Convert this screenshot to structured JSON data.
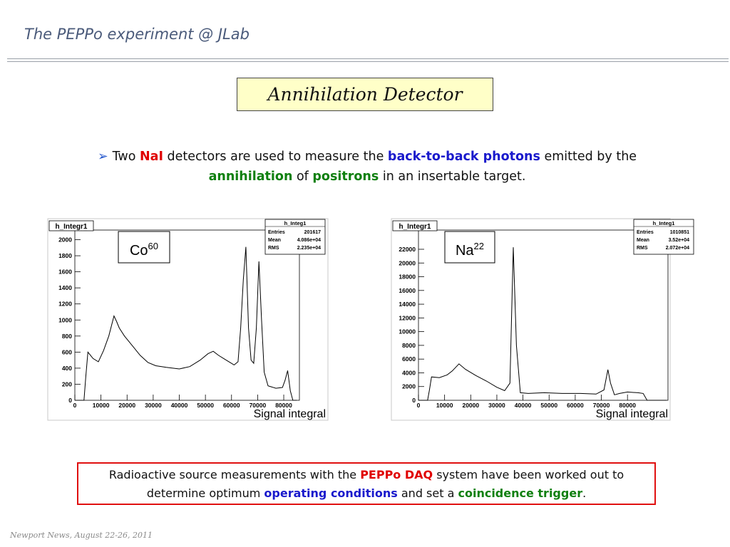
{
  "header": {
    "title": "The PEPPo experiment @ JLab"
  },
  "slide_title": "Annihilation Detector",
  "bullet": [
    {
      "text": "Two "
    },
    {
      "text": "NaI",
      "color": "#e00000"
    },
    {
      "text": " detectors are used to measure the "
    },
    {
      "text": "back-to-back photons",
      "color": "#1a1acc"
    },
    {
      "text": " emitted by the "
    },
    {
      "text": "annihilation",
      "color": "#108010"
    },
    {
      "text": " of "
    },
    {
      "text": "positrons",
      "color": "#108010"
    },
    {
      "text": " in an insertable target."
    }
  ],
  "note": [
    {
      "text": "Radioactive source measurements with the "
    },
    {
      "text": "PEPPo DAQ",
      "color": "#e00000"
    },
    {
      "text": " system have been worked out to determine optimum "
    },
    {
      "text": "operating conditions",
      "color": "#1a1acc"
    },
    {
      "text": " and set a "
    },
    {
      "text": "coincidence trigger",
      "color": "#108010"
    },
    {
      "text": "."
    }
  ],
  "footer": "Newport News, August 22-26, 2011",
  "chart_data": [
    {
      "type": "line",
      "title": "h_Integr1",
      "source": "Co",
      "isotope": "60",
      "xlabel": "Signal integral",
      "stats": {
        "title": "h_Integ1",
        "rows": [
          [
            "Entries",
            "201617"
          ],
          [
            "Mean",
            "4.086e+04"
          ],
          [
            "RMS",
            "2.235e+04"
          ]
        ]
      },
      "color": "#000000",
      "x": [
        0,
        3500,
        4200,
        5000,
        7000,
        9000,
        11000,
        13000,
        15000,
        16000,
        17000,
        19000,
        22000,
        25000,
        28000,
        31000,
        35000,
        40000,
        44000,
        48000,
        51000,
        53000,
        55000,
        57000,
        59000,
        61000,
        62500,
        63500,
        64500,
        65500,
        66500,
        67500,
        68500,
        69500,
        70500,
        71500,
        72500,
        74000,
        77000,
        79500,
        80500,
        81500,
        82500,
        83500,
        85000
      ],
      "values": [
        0,
        0,
        300,
        600,
        520,
        480,
        620,
        800,
        1050,
        980,
        900,
        800,
        680,
        560,
        470,
        430,
        410,
        390,
        420,
        500,
        580,
        610,
        560,
        520,
        480,
        440,
        480,
        900,
        1500,
        1910,
        900,
        500,
        460,
        900,
        1730,
        1000,
        350,
        180,
        150,
        160,
        250,
        370,
        120,
        0,
        0
      ],
      "xlim": [
        0,
        86000
      ],
      "ylim": [
        0,
        2120
      ],
      "xticks": [
        0,
        10000,
        20000,
        30000,
        40000,
        50000,
        60000,
        70000,
        80000
      ],
      "yticks": [
        0,
        200,
        400,
        600,
        800,
        1000,
        1200,
        1400,
        1600,
        1800,
        2000
      ]
    },
    {
      "type": "line",
      "title": "h_Integr1",
      "source": "Na",
      "isotope": "22",
      "xlabel": "Signal integral",
      "stats": {
        "title": "h_Integ1",
        "rows": [
          [
            "Entries",
            "1010851"
          ],
          [
            "Mean",
            "3.52e+04"
          ],
          [
            "RMS",
            "2.072e+04"
          ]
        ]
      },
      "color": "#000000",
      "x": [
        0,
        3500,
        4200,
        5000,
        8000,
        11000,
        13000,
        15500,
        18000,
        22000,
        26000,
        30000,
        33000,
        35000,
        36300,
        37500,
        39000,
        42000,
        48000,
        55000,
        62000,
        68000,
        71000,
        72500,
        73500,
        75000,
        77000,
        80000,
        84000,
        86000,
        87500,
        95000
      ],
      "values": [
        0,
        0,
        1500,
        3400,
        3300,
        3700,
        4300,
        5300,
        4500,
        3600,
        2800,
        1900,
        1400,
        2500,
        22300,
        8000,
        1100,
        1000,
        1100,
        1000,
        1000,
        900,
        1500,
        4460,
        2500,
        800,
        1000,
        1200,
        1100,
        1000,
        0,
        0
      ],
      "xlim": [
        0,
        95500
      ],
      "ylim": [
        0,
        24800
      ],
      "xticks": [
        0,
        10000,
        20000,
        30000,
        40000,
        50000,
        60000,
        70000,
        80000
      ],
      "yticks": [
        0,
        2000,
        4000,
        6000,
        8000,
        10000,
        12000,
        14000,
        16000,
        18000,
        20000,
        22000
      ]
    }
  ]
}
